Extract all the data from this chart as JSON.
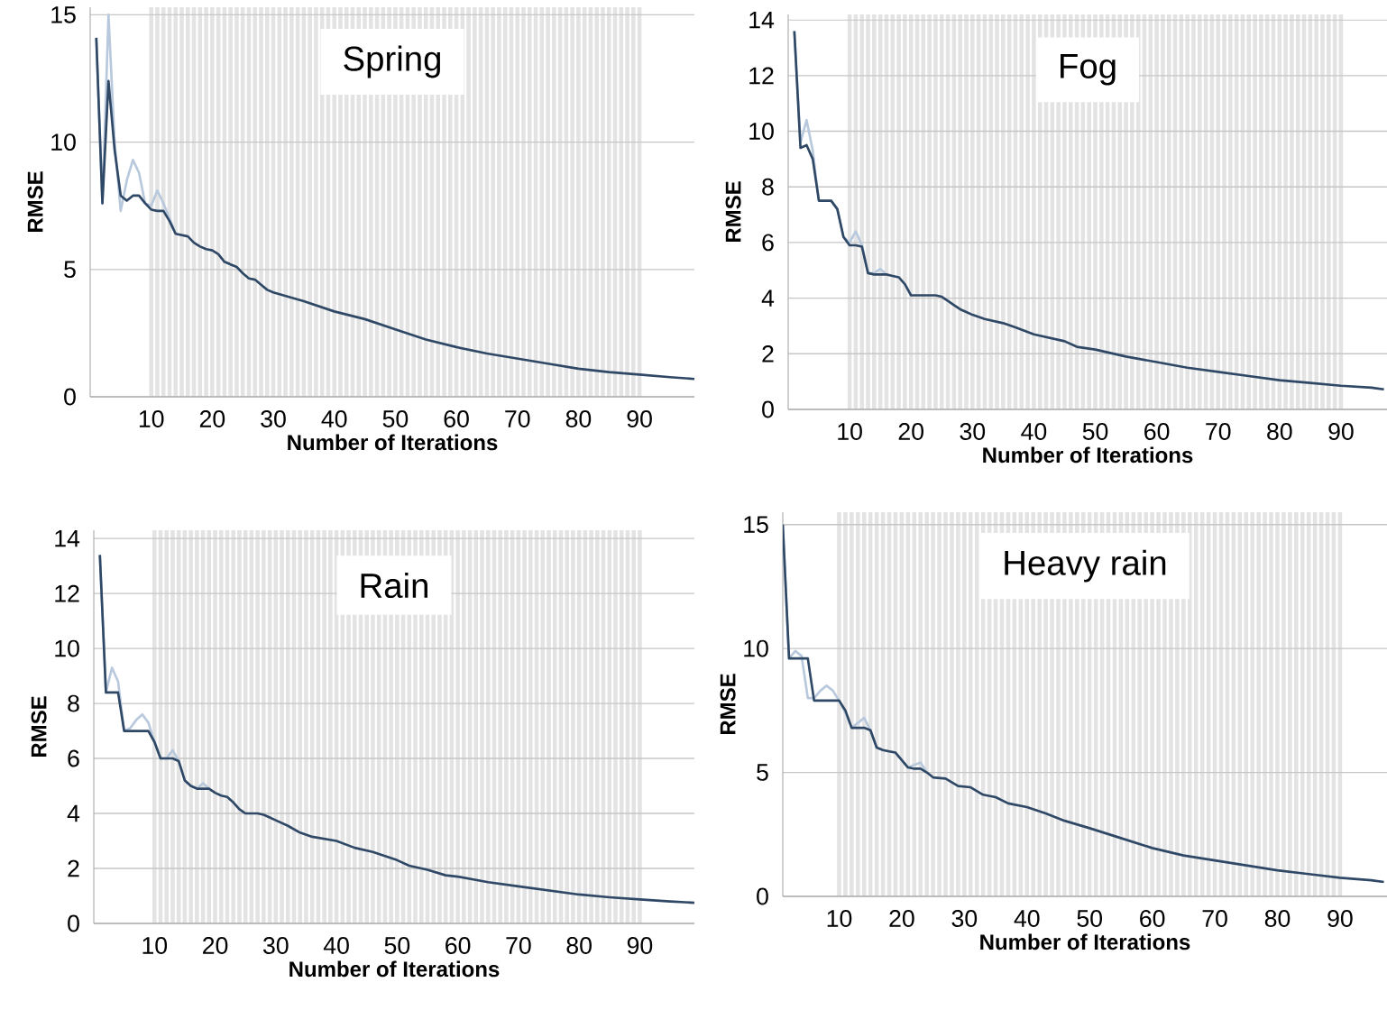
{
  "chart_data": [
    {
      "type": "line",
      "title": "Spring",
      "xlabel": "Number of Iterations",
      "ylabel": "RMSE",
      "xlim": [
        0,
        99
      ],
      "ylim": [
        0,
        15.3
      ],
      "xticks": [
        10,
        20,
        30,
        40,
        50,
        60,
        70,
        80,
        90
      ],
      "yticks": [
        0,
        5,
        10,
        15
      ],
      "grid": true,
      "series": [
        {
          "color": "#b9c9dd",
          "x": [
            1,
            2,
            3,
            4,
            5,
            6,
            7,
            8,
            9,
            10,
            11,
            12,
            13,
            14
          ],
          "values": [
            14.1,
            7.6,
            15.0,
            10.0,
            7.3,
            8.5,
            9.3,
            8.8,
            7.6,
            7.5,
            8.1,
            7.6,
            7.0,
            6.4
          ]
        },
        {
          "color": "#2f4866",
          "x": [
            1,
            2,
            3,
            4,
            5,
            6,
            7,
            8,
            9,
            10,
            11,
            12,
            13,
            14,
            15,
            16,
            17,
            18,
            19,
            20,
            21,
            22,
            23,
            24,
            25,
            26,
            27,
            28,
            29,
            30,
            35,
            40,
            45,
            50,
            55,
            60,
            65,
            70,
            75,
            80,
            85,
            90,
            95,
            99
          ],
          "values": [
            14.1,
            7.6,
            12.4,
            9.7,
            7.9,
            7.7,
            7.9,
            7.9,
            7.6,
            7.35,
            7.3,
            7.3,
            6.9,
            6.4,
            6.35,
            6.3,
            6.05,
            5.9,
            5.8,
            5.75,
            5.6,
            5.3,
            5.2,
            5.1,
            4.85,
            4.65,
            4.6,
            4.4,
            4.2,
            4.1,
            3.75,
            3.35,
            3.05,
            2.65,
            2.25,
            1.95,
            1.7,
            1.5,
            1.3,
            1.1,
            0.97,
            0.87,
            0.77,
            0.7
          ]
        }
      ]
    },
    {
      "type": "line",
      "title": "Fog",
      "xlabel": "Number of Iterations",
      "ylabel": "RMSE",
      "xlim": [
        0,
        97.5
      ],
      "ylim": [
        0,
        14.2
      ],
      "xticks": [
        10,
        20,
        30,
        40,
        50,
        60,
        70,
        80,
        90
      ],
      "yticks": [
        0,
        2,
        4,
        6,
        8,
        10,
        12,
        14
      ],
      "grid": true,
      "series": [
        {
          "color": "#b9c9dd",
          "x": [
            1,
            2,
            3,
            4,
            5,
            6,
            7,
            8,
            9,
            10,
            11,
            12,
            13,
            14,
            15,
            16
          ],
          "values": [
            13.6,
            9.6,
            10.4,
            9.3,
            7.5,
            7.5,
            7.5,
            7.2,
            6.2,
            6.0,
            6.4,
            5.9,
            4.9,
            4.9,
            5.05,
            4.85
          ]
        },
        {
          "color": "#2f4866",
          "x": [
            1,
            2,
            3,
            4,
            5,
            6,
            7,
            8,
            9,
            10,
            11,
            12,
            13,
            14,
            15,
            16,
            17,
            18,
            19,
            20,
            21,
            22,
            23,
            24,
            25,
            26,
            27,
            28,
            29,
            30,
            32,
            35,
            37,
            40,
            45,
            47,
            50,
            55,
            60,
            65,
            70,
            75,
            80,
            85,
            90,
            95,
            97
          ],
          "values": [
            13.6,
            9.4,
            9.5,
            9.0,
            7.5,
            7.5,
            7.5,
            7.2,
            6.2,
            5.9,
            5.9,
            5.85,
            4.9,
            4.85,
            4.85,
            4.85,
            4.8,
            4.75,
            4.5,
            4.1,
            4.1,
            4.1,
            4.1,
            4.1,
            4.05,
            3.9,
            3.75,
            3.6,
            3.5,
            3.4,
            3.25,
            3.1,
            2.95,
            2.7,
            2.45,
            2.25,
            2.15,
            1.9,
            1.7,
            1.5,
            1.35,
            1.2,
            1.05,
            0.95,
            0.85,
            0.78,
            0.72
          ]
        }
      ]
    },
    {
      "type": "line",
      "title": "Rain",
      "xlabel": "Number of Iterations",
      "ylabel": "RMSE",
      "xlim": [
        0,
        99
      ],
      "ylim": [
        0,
        14.3
      ],
      "xticks": [
        10,
        20,
        30,
        40,
        50,
        60,
        70,
        80,
        90
      ],
      "yticks": [
        0,
        2,
        4,
        6,
        8,
        10,
        12,
        14
      ],
      "grid": true,
      "series": [
        {
          "color": "#b9c9dd",
          "x": [
            1,
            2,
            3,
            4,
            5,
            6,
            7,
            8,
            9,
            10,
            11,
            12,
            13,
            14,
            15,
            16,
            17,
            18,
            19
          ],
          "values": [
            13.4,
            8.4,
            9.3,
            8.8,
            7.0,
            7.1,
            7.4,
            7.6,
            7.3,
            6.6,
            6.0,
            6.0,
            6.3,
            5.9,
            5.2,
            5.0,
            4.9,
            5.1,
            4.9
          ]
        },
        {
          "color": "#2f4866",
          "x": [
            1,
            2,
            3,
            4,
            5,
            6,
            7,
            8,
            9,
            10,
            11,
            12,
            13,
            14,
            15,
            16,
            17,
            18,
            19,
            20,
            21,
            22,
            23,
            24,
            25,
            26,
            27,
            28,
            29,
            30,
            32,
            34,
            36,
            40,
            43,
            46,
            50,
            52,
            55,
            58,
            60,
            65,
            70,
            75,
            80,
            85,
            90,
            95,
            99
          ],
          "values": [
            13.4,
            8.4,
            8.4,
            8.4,
            7.0,
            7.0,
            7.0,
            7.0,
            7.0,
            6.6,
            6.0,
            6.0,
            6.0,
            5.9,
            5.2,
            5.0,
            4.9,
            4.9,
            4.9,
            4.75,
            4.65,
            4.6,
            4.4,
            4.15,
            4.0,
            4.0,
            4.0,
            3.95,
            3.85,
            3.75,
            3.55,
            3.3,
            3.15,
            3.0,
            2.75,
            2.6,
            2.3,
            2.1,
            1.95,
            1.75,
            1.7,
            1.5,
            1.35,
            1.2,
            1.05,
            0.95,
            0.87,
            0.8,
            0.75
          ]
        }
      ]
    },
    {
      "type": "line",
      "title": "Heavy rain",
      "xlabel": "Number of Iterations",
      "ylabel": "RMSE",
      "xlim": [
        1,
        97.5
      ],
      "ylim": [
        0,
        15.5
      ],
      "xticks": [
        10,
        20,
        30,
        40,
        50,
        60,
        70,
        80,
        90
      ],
      "yticks": [
        0,
        5,
        10,
        15
      ],
      "grid": true,
      "series": [
        {
          "color": "#b9c9dd",
          "x": [
            1,
            2,
            3,
            4,
            5,
            6,
            7,
            8,
            9,
            10,
            11,
            12,
            13,
            14,
            15,
            16,
            17,
            18,
            19,
            20,
            21,
            22,
            23,
            24
          ],
          "values": [
            15.0,
            9.6,
            9.9,
            9.7,
            8.0,
            8.0,
            8.3,
            8.5,
            8.3,
            7.9,
            7.4,
            6.8,
            7.0,
            7.2,
            6.7,
            6.0,
            5.9,
            5.85,
            5.8,
            5.5,
            5.2,
            5.3,
            5.4,
            5.0
          ]
        },
        {
          "color": "#2f4866",
          "x": [
            1,
            2,
            3,
            4,
            5,
            6,
            7,
            8,
            9,
            10,
            11,
            12,
            13,
            14,
            15,
            16,
            17,
            18,
            19,
            20,
            21,
            22,
            23,
            24,
            25,
            27,
            29,
            31,
            33,
            35,
            37,
            40,
            43,
            46,
            50,
            55,
            60,
            65,
            70,
            75,
            80,
            85,
            90,
            95,
            97
          ],
          "values": [
            15.0,
            9.6,
            9.6,
            9.6,
            9.6,
            7.9,
            7.9,
            7.9,
            7.9,
            7.9,
            7.5,
            6.8,
            6.8,
            6.8,
            6.7,
            6.0,
            5.9,
            5.85,
            5.8,
            5.5,
            5.2,
            5.15,
            5.15,
            5.0,
            4.8,
            4.75,
            4.45,
            4.4,
            4.1,
            4.0,
            3.75,
            3.6,
            3.35,
            3.05,
            2.75,
            2.35,
            1.95,
            1.65,
            1.45,
            1.25,
            1.05,
            0.9,
            0.75,
            0.65,
            0.58
          ]
        }
      ]
    }
  ]
}
